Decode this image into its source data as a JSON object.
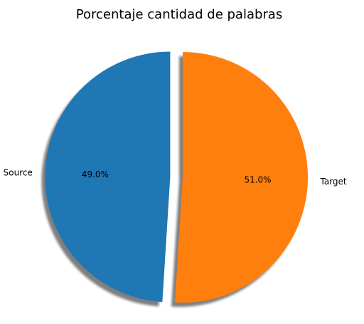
{
  "chart_data": {
    "type": "pie",
    "title": "Porcentaje cantidad de palabras",
    "slices": [
      {
        "label": "Source",
        "value": 49.0,
        "pct_label": "49.0%",
        "color": "#1f77b4",
        "exploded": true
      },
      {
        "label": "Target",
        "value": 51.0,
        "pct_label": "51.0%",
        "color": "#ff7f0e",
        "exploded": false
      }
    ],
    "start_angle": "top (90°)",
    "direction": "counterclockwise",
    "shadow": true,
    "legend": "none",
    "grid": false
  }
}
